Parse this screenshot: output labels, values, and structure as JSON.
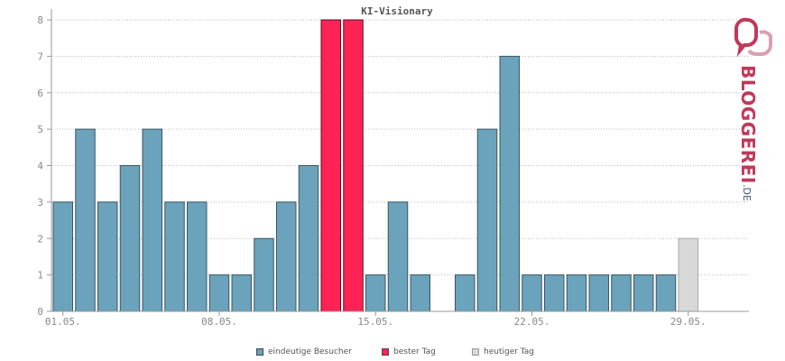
{
  "chart_data": {
    "type": "bar",
    "title": "KI-Visionary",
    "xlabel": "",
    "ylabel": "",
    "ylim": [
      0,
      8
    ],
    "yticks": [
      "0",
      "1",
      "2",
      "3",
      "4",
      "5",
      "6",
      "7",
      "8"
    ],
    "x_tick_labels": [
      "01.05.",
      "08.05.",
      "15.05.",
      "22.05.",
      "29.05."
    ],
    "grid": true,
    "legend_position": "bottom",
    "series": [
      {
        "name": "eindeutige Besucher",
        "color": "#6aa3bb"
      },
      {
        "name": "bester Tag",
        "color": "#ff2255"
      },
      {
        "name": "heutiger Tag",
        "color": "#d8d8d8"
      }
    ],
    "days": [
      {
        "day": "01.05.",
        "value": 3,
        "kind": "normal"
      },
      {
        "day": "02.05.",
        "value": 5,
        "kind": "normal"
      },
      {
        "day": "03.05.",
        "value": 3,
        "kind": "normal"
      },
      {
        "day": "04.05.",
        "value": 4,
        "kind": "normal"
      },
      {
        "day": "05.05.",
        "value": 5,
        "kind": "normal"
      },
      {
        "day": "06.05.",
        "value": 3,
        "kind": "normal"
      },
      {
        "day": "07.05.",
        "value": 3,
        "kind": "normal"
      },
      {
        "day": "08.05.",
        "value": 1,
        "kind": "normal"
      },
      {
        "day": "09.05.",
        "value": 1,
        "kind": "normal"
      },
      {
        "day": "10.05.",
        "value": 2,
        "kind": "normal"
      },
      {
        "day": "11.05.",
        "value": 3,
        "kind": "normal"
      },
      {
        "day": "12.05.",
        "value": 4,
        "kind": "normal"
      },
      {
        "day": "13.05.",
        "value": 8,
        "kind": "best"
      },
      {
        "day": "14.05.",
        "value": 8,
        "kind": "best"
      },
      {
        "day": "15.05.",
        "value": 1,
        "kind": "normal"
      },
      {
        "day": "16.05.",
        "value": 3,
        "kind": "normal"
      },
      {
        "day": "17.05.",
        "value": 1,
        "kind": "normal"
      },
      {
        "day": "18.05.",
        "value": 0,
        "kind": "normal"
      },
      {
        "day": "19.05.",
        "value": 1,
        "kind": "normal"
      },
      {
        "day": "20.05.",
        "value": 5,
        "kind": "normal"
      },
      {
        "day": "21.05.",
        "value": 7,
        "kind": "normal"
      },
      {
        "day": "22.05.",
        "value": 1,
        "kind": "normal"
      },
      {
        "day": "23.05.",
        "value": 1,
        "kind": "normal"
      },
      {
        "day": "24.05.",
        "value": 1,
        "kind": "normal"
      },
      {
        "day": "25.05.",
        "value": 1,
        "kind": "normal"
      },
      {
        "day": "26.05.",
        "value": 1,
        "kind": "normal"
      },
      {
        "day": "27.05.",
        "value": 1,
        "kind": "normal"
      },
      {
        "day": "28.05.",
        "value": 1,
        "kind": "normal"
      },
      {
        "day": "29.05.",
        "value": 2,
        "kind": "today"
      },
      {
        "day": "30.05.",
        "value": 0,
        "kind": "future"
      },
      {
        "day": "31.05.",
        "value": 0,
        "kind": "future"
      }
    ]
  },
  "logo": {
    "name": "BLOGGEREI",
    "suffix": ".DE",
    "icon": "speech-bubbles-icon",
    "colors": {
      "primary": "#c0395a",
      "secondary": "#3f5a78"
    }
  }
}
